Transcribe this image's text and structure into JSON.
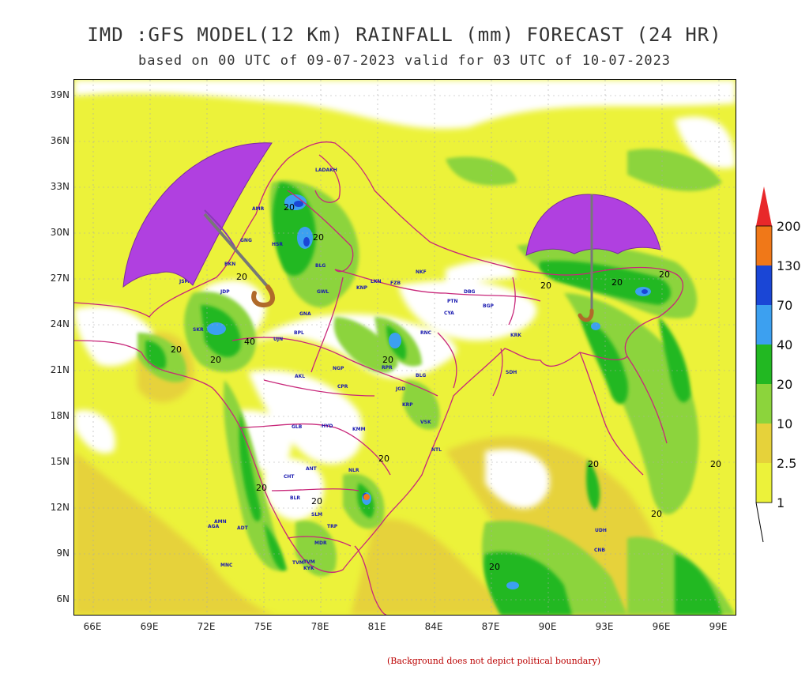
{
  "title": "IMD :GFS MODEL(12 Km) RAINFALL (mm) FORECAST (24 HR)",
  "subtitle": "based on 00 UTC of 09-07-2023 valid for 03 UTC of 10-07-2023",
  "y_axis": [
    "39N",
    "36N",
    "33N",
    "30N",
    "27N",
    "24N",
    "21N",
    "18N",
    "15N",
    "12N",
    "9N",
    "6N"
  ],
  "x_axis": [
    "66E",
    "69E",
    "72E",
    "75E",
    "78E",
    "81E",
    "84E",
    "87E",
    "90E",
    "93E",
    "96E",
    "99E"
  ],
  "legend": {
    "labels": [
      "200",
      "130",
      "70",
      "40",
      "20",
      "10",
      "2.5",
      "1"
    ],
    "colors": [
      "#e8282a",
      "#f07818",
      "#1a46d6",
      "#3ca0f0",
      "#22b822",
      "#8cd43c",
      "#e6d23a",
      "#ecf23a"
    ]
  },
  "contour_labels": [
    "20",
    "20",
    "20",
    "20",
    "20",
    "20",
    "20",
    "20",
    "20",
    "20",
    "20",
    "20",
    "20",
    "40",
    "20",
    "20",
    "20"
  ],
  "place_labels": [
    "LADAKH",
    "JSM",
    "JDP",
    "BKN",
    "AMR",
    "GNG",
    "HSR",
    "BLG",
    "GWL",
    "KNP",
    "LKN",
    "FZB",
    "PTN",
    "DBG",
    "BGP",
    "CYA",
    "NGP",
    "AKL",
    "CPR",
    "RPR",
    "JGD",
    "KRP",
    "VSK",
    "BLG",
    "GLB",
    "HYD",
    "KMM",
    "NLR",
    "ANT",
    "CHT",
    "BLR",
    "SLM",
    "TRP",
    "MDR",
    "TVM",
    "KYK",
    "MNC",
    "AMN",
    "AGA",
    "ADT",
    "SDH",
    "KRK",
    "NKF",
    "CNB",
    "UDH",
    "RNC",
    "BPL",
    "GNA",
    "UJN",
    "SKR",
    "TVM",
    "NTL"
  ],
  "footnote": "(Background does not depict political boundary)",
  "colors": {
    "border": "#c8287a",
    "umbrella": "#b040e0"
  },
  "icons": [
    "umbrella-icon",
    "umbrella-icon"
  ]
}
